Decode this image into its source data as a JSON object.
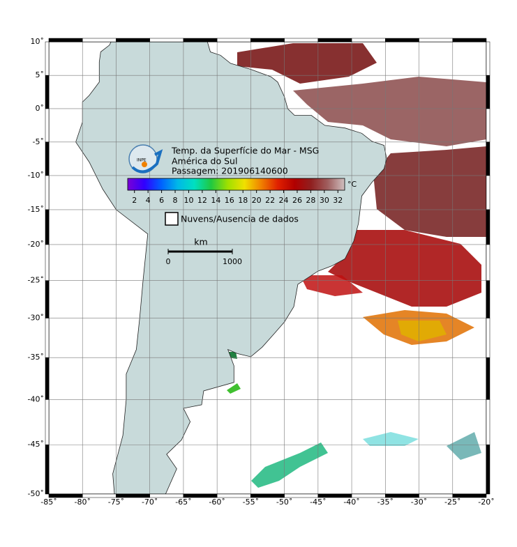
{
  "map": {
    "title_lines": [
      "Temp. da Superfície do Mar - MSG",
      "América do Sul",
      "Passagem: 201906140600"
    ],
    "logo": "INPE",
    "lonlim": [
      -85,
      -20
    ],
    "latlim": [
      -50,
      10
    ],
    "lonticks": [
      {
        "value": -85,
        "label": "-85˚"
      },
      {
        "value": -80,
        "label": "-80˚"
      },
      {
        "value": -75,
        "label": "-75˚"
      },
      {
        "value": -70,
        "label": "-70˚"
      },
      {
        "value": -65,
        "label": "-65˚"
      },
      {
        "value": -60,
        "label": "-60˚"
      },
      {
        "value": -55,
        "label": "-55˚"
      },
      {
        "value": -50,
        "label": "-50˚"
      },
      {
        "value": -45,
        "label": "-45˚"
      },
      {
        "value": -40,
        "label": "-40˚"
      },
      {
        "value": -35,
        "label": "-35˚"
      },
      {
        "value": -30,
        "label": "-30˚"
      },
      {
        "value": -25,
        "label": "-25˚"
      },
      {
        "value": -20,
        "label": "-20˚"
      }
    ],
    "latticks": [
      {
        "value": 10,
        "label": "10˚"
      },
      {
        "value": 5,
        "label": "5˚"
      },
      {
        "value": 0,
        "label": "0˚"
      },
      {
        "value": -5,
        "label": "-5˚"
      },
      {
        "value": -10,
        "label": "-10˚"
      },
      {
        "value": -15,
        "label": "-15˚"
      },
      {
        "value": -20,
        "label": "-20˚"
      },
      {
        "value": -25,
        "label": "-25˚"
      },
      {
        "value": -30,
        "label": "-30˚"
      },
      {
        "value": -35,
        "label": "-35˚"
      },
      {
        "value": -40,
        "label": "-40˚"
      },
      {
        "value": -45,
        "label": "-45˚"
      },
      {
        "value": -50,
        "label": "-50˚"
      }
    ],
    "grid": true,
    "colorbar": {
      "lim": [
        1,
        33
      ],
      "ticks": [
        2,
        4,
        6,
        8,
        10,
        12,
        14,
        16,
        18,
        20,
        22,
        24,
        26,
        28,
        30,
        32
      ],
      "unit": "°C",
      "colors": [
        "#7a00d6",
        "#3000ff",
        "#0060ff",
        "#00b8e8",
        "#00e0c0",
        "#20c840",
        "#a0e000",
        "#f0e000",
        "#f08000",
        "#e02000",
        "#b00000",
        "#902020",
        "#a06060",
        "#d0c0c0"
      ]
    },
    "legend": "Nuvens/Ausencia de dados",
    "scale": {
      "unit": "km",
      "ticks": [
        0,
        1000
      ]
    }
  }
}
